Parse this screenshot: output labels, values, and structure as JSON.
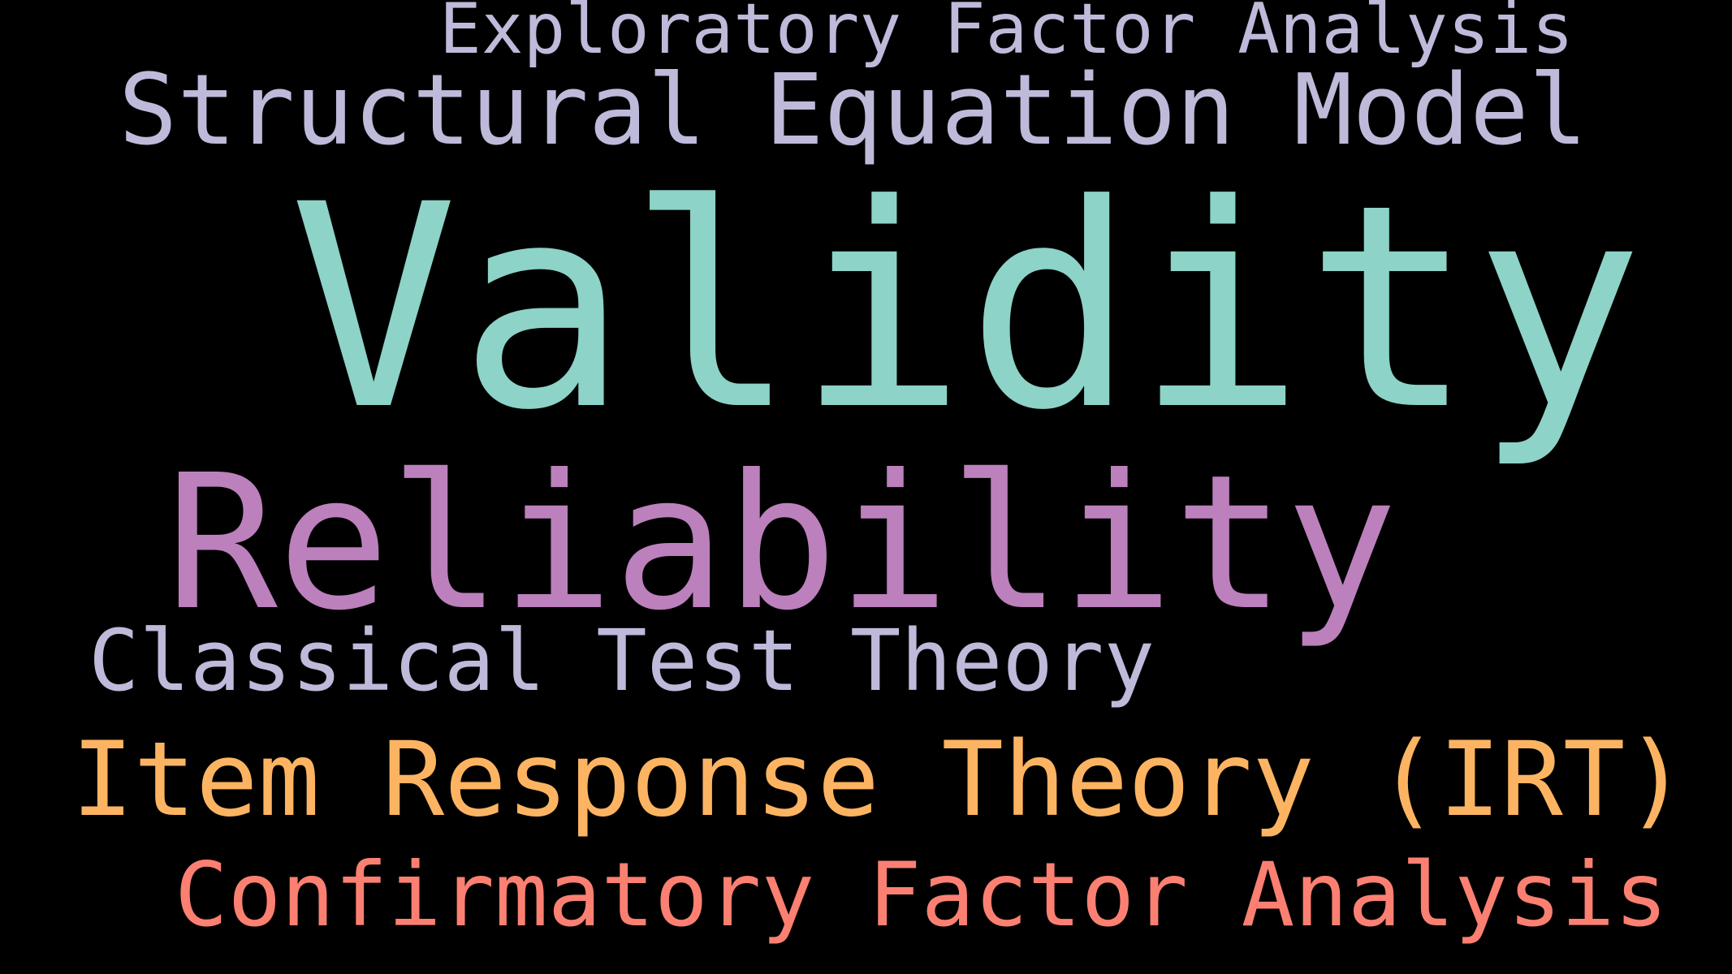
{
  "words": [
    {
      "text": "Exploratory Factor Analysis",
      "color": "#bebada"
    },
    {
      "text": "Structural Equation Model",
      "color": "#bebada"
    },
    {
      "text": "Validity",
      "color": "#8dd3c7"
    },
    {
      "text": "Reliability",
      "color": "#bc80bd"
    },
    {
      "text": "Classical Test Theory",
      "color": "#bebada"
    },
    {
      "text": "Item Response Theory (IRT)",
      "color": "#fdb462"
    },
    {
      "text": "Confirmatory Factor Analysis",
      "color": "#fb8072"
    }
  ]
}
